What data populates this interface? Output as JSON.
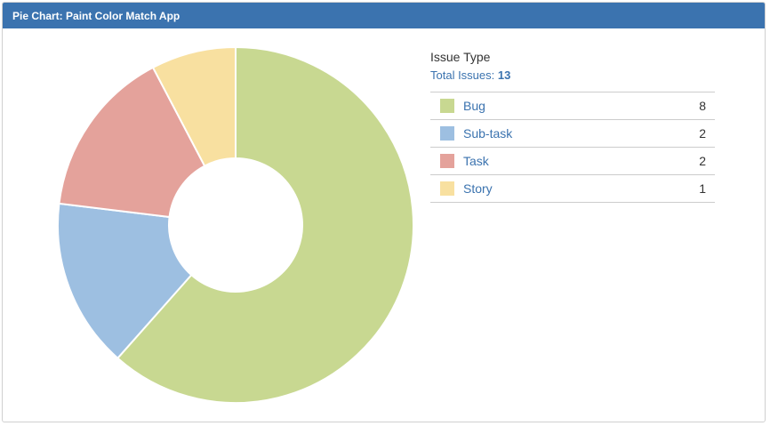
{
  "header": {
    "title": "Pie Chart: Paint Color Match App"
  },
  "legend": {
    "title": "Issue Type",
    "total_label": "Total Issues:",
    "total_value": "13",
    "items": [
      {
        "label": "Bug",
        "count": "8",
        "color": "#c8d891"
      },
      {
        "label": "Sub-task",
        "count": "2",
        "color": "#9dbfe1"
      },
      {
        "label": "Task",
        "count": "2",
        "color": "#e4a29b"
      },
      {
        "label": "Story",
        "count": "1",
        "color": "#f8e0a0"
      }
    ]
  },
  "chart_data": {
    "type": "pie",
    "variant": "donut",
    "title": "Pie Chart: Paint Color Match App",
    "legend_title": "Issue Type",
    "total": 13,
    "categories": [
      "Bug",
      "Sub-task",
      "Task",
      "Story"
    ],
    "values": [
      8,
      2,
      2,
      1
    ],
    "colors": [
      "#c8d891",
      "#9dbfe1",
      "#e4a29b",
      "#f8e0a0"
    ],
    "legend_position": "right"
  }
}
